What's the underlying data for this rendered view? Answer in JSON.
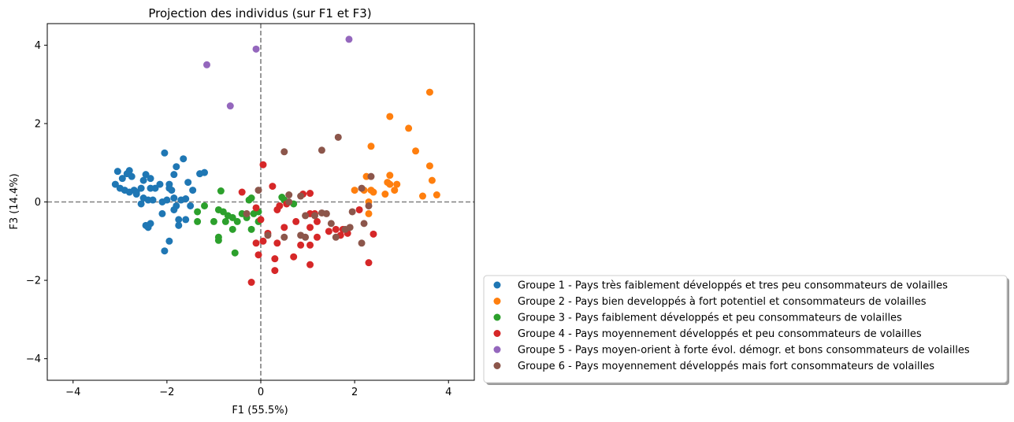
{
  "chart_data": {
    "type": "scatter",
    "title": "Projection des individus (sur F1 et F3)",
    "xlabel": "F1 (55.5%)",
    "ylabel": "F3 (14.4%)",
    "xlim": [
      -4.55,
      4.55
    ],
    "ylim": [
      -4.55,
      4.55
    ],
    "xticks": [
      -4,
      -2,
      0,
      2,
      4
    ],
    "yticks": [
      -4,
      -2,
      0,
      2,
      4
    ],
    "reference_lines": {
      "x": 0,
      "y": 0,
      "style": "dashed",
      "color": "#808080"
    },
    "legend_position": "lower-right outside",
    "series": [
      {
        "name": "Groupe 1 - Pays très faiblement développés et tres peu consommateurs de volailles",
        "color": "#1f77b4",
        "points": [
          [
            -3.05,
            0.78
          ],
          [
            -2.95,
            0.6
          ],
          [
            -2.85,
            0.72
          ],
          [
            -2.8,
            0.8
          ],
          [
            -2.75,
            0.65
          ],
          [
            -3.1,
            0.45
          ],
          [
            -3.0,
            0.35
          ],
          [
            -2.9,
            0.3
          ],
          [
            -2.8,
            0.25
          ],
          [
            -2.7,
            0.3
          ],
          [
            -2.65,
            0.25
          ],
          [
            -2.55,
            0.35
          ],
          [
            -2.5,
            0.55
          ],
          [
            -2.45,
            0.7
          ],
          [
            -2.35,
            0.6
          ],
          [
            -2.35,
            0.35
          ],
          [
            -2.25,
            0.35
          ],
          [
            -2.15,
            0.45
          ],
          [
            -2.05,
            1.25
          ],
          [
            -1.95,
            0.45
          ],
          [
            -1.95,
            0.35
          ],
          [
            -1.9,
            0.3
          ],
          [
            -1.85,
            0.7
          ],
          [
            -1.8,
            0.9
          ],
          [
            -1.65,
            1.1
          ],
          [
            -1.55,
            0.5
          ],
          [
            -1.45,
            0.3
          ],
          [
            -1.3,
            0.72
          ],
          [
            -1.2,
            0.75
          ],
          [
            -2.5,
            0.1
          ],
          [
            -2.4,
            0.05
          ],
          [
            -2.3,
            0.05
          ],
          [
            -2.1,
            0.0
          ],
          [
            -2.0,
            0.05
          ],
          [
            -1.85,
            0.1
          ],
          [
            -1.7,
            0.05
          ],
          [
            -1.6,
            0.08
          ],
          [
            -1.5,
            -0.1
          ],
          [
            -2.55,
            -0.05
          ],
          [
            -2.1,
            -0.3
          ],
          [
            -1.75,
            -0.45
          ],
          [
            -1.75,
            -0.6
          ],
          [
            -1.6,
            -0.45
          ],
          [
            -2.45,
            -0.6
          ],
          [
            -2.4,
            -0.65
          ],
          [
            -2.35,
            -0.55
          ],
          [
            -1.95,
            -1.0
          ],
          [
            -2.05,
            -1.25
          ],
          [
            -1.85,
            -0.2
          ],
          [
            -2.65,
            0.2
          ],
          [
            -1.8,
            -0.1
          ]
        ]
      },
      {
        "name": "Groupe 2 - Pays bien developpés à fort potentiel et consommateurs de volailles",
        "color": "#ff7f0e",
        "points": [
          [
            3.6,
            2.8
          ],
          [
            2.75,
            2.18
          ],
          [
            3.15,
            1.88
          ],
          [
            3.3,
            1.3
          ],
          [
            2.35,
            1.42
          ],
          [
            3.6,
            0.92
          ],
          [
            2.75,
            0.68
          ],
          [
            2.25,
            0.65
          ],
          [
            3.65,
            0.55
          ],
          [
            2.9,
            0.45
          ],
          [
            2.7,
            0.5
          ],
          [
            2.75,
            0.45
          ],
          [
            2.35,
            0.3
          ],
          [
            2.4,
            0.25
          ],
          [
            2.85,
            0.3
          ],
          [
            2.65,
            0.2
          ],
          [
            3.45,
            0.15
          ],
          [
            3.75,
            0.18
          ],
          [
            2.2,
            0.3
          ],
          [
            2.3,
            0.0
          ],
          [
            2.3,
            -0.3
          ],
          [
            2.0,
            0.3
          ]
        ]
      },
      {
        "name": "Groupe 3 - Pays faiblement développés et peu consommateurs de volailles",
        "color": "#2ca02c",
        "points": [
          [
            -0.85,
            0.28
          ],
          [
            -0.2,
            0.1
          ],
          [
            -0.25,
            0.05
          ],
          [
            0.45,
            0.12
          ],
          [
            0.5,
            0.05
          ],
          [
            0.7,
            -0.05
          ],
          [
            -1.2,
            -0.1
          ],
          [
            -0.9,
            -0.2
          ],
          [
            -0.8,
            -0.25
          ],
          [
            -0.7,
            -0.35
          ],
          [
            -0.6,
            -0.4
          ],
          [
            -0.4,
            -0.3
          ],
          [
            -0.15,
            -0.3
          ],
          [
            -0.3,
            -0.4
          ],
          [
            -0.5,
            -0.5
          ],
          [
            -0.75,
            -0.5
          ],
          [
            -1.0,
            -0.5
          ],
          [
            -1.35,
            -0.25
          ],
          [
            -1.35,
            -0.5
          ],
          [
            -0.6,
            -0.7
          ],
          [
            -0.2,
            -0.7
          ],
          [
            -0.05,
            -0.5
          ],
          [
            -0.9,
            -0.9
          ],
          [
            -0.9,
            -0.98
          ],
          [
            -0.55,
            -1.3
          ],
          [
            -0.05,
            -0.25
          ]
        ]
      },
      {
        "name": "Groupe 4 - Pays moyennement développés et peu consommateurs de volailles",
        "color": "#d62728",
        "points": [
          [
            0.05,
            0.95
          ],
          [
            0.25,
            0.4
          ],
          [
            -0.4,
            0.25
          ],
          [
            0.9,
            0.2
          ],
          [
            1.05,
            0.22
          ],
          [
            -0.1,
            -0.15
          ],
          [
            0.35,
            -0.2
          ],
          [
            0.4,
            -0.1
          ],
          [
            0.55,
            -0.05
          ],
          [
            0.75,
            -0.5
          ],
          [
            0.5,
            -0.65
          ],
          [
            1.05,
            -0.3
          ],
          [
            1.15,
            -0.3
          ],
          [
            1.2,
            -0.5
          ],
          [
            1.45,
            -0.75
          ],
          [
            1.6,
            -0.7
          ],
          [
            1.75,
            -0.7
          ],
          [
            1.85,
            -0.8
          ],
          [
            1.7,
            -0.85
          ],
          [
            2.1,
            -0.2
          ],
          [
            2.4,
            -0.82
          ],
          [
            0.15,
            -0.8
          ],
          [
            0.05,
            -1.0
          ],
          [
            0.35,
            -1.05
          ],
          [
            0.85,
            -1.1
          ],
          [
            1.05,
            -1.1
          ],
          [
            1.2,
            -0.9
          ],
          [
            -0.05,
            -1.35
          ],
          [
            0.3,
            -1.45
          ],
          [
            0.7,
            -1.4
          ],
          [
            1.05,
            -1.6
          ],
          [
            0.3,
            -1.75
          ],
          [
            -0.2,
            -2.05
          ],
          [
            2.3,
            -1.55
          ],
          [
            1.05,
            -0.65
          ],
          [
            0.0,
            -0.45
          ],
          [
            -0.1,
            -1.05
          ]
        ]
      },
      {
        "name": "Groupe 5 - Pays moyen-orient à forte évol. démogr. et bons consommateurs de volailles",
        "color": "#9467bd",
        "points": [
          [
            -1.15,
            3.5
          ],
          [
            -0.1,
            3.9
          ],
          [
            1.88,
            4.15
          ],
          [
            -0.65,
            2.45
          ]
        ]
      },
      {
        "name": "Groupe 6 - Pays moyennement développés mais fort consommateurs de volailles",
        "color": "#8c564b",
        "points": [
          [
            0.5,
            1.28
          ],
          [
            1.3,
            1.32
          ],
          [
            1.65,
            1.65
          ],
          [
            2.35,
            0.65
          ],
          [
            2.15,
            0.35
          ],
          [
            -0.05,
            0.3
          ],
          [
            0.6,
            0.18
          ],
          [
            0.85,
            0.15
          ],
          [
            0.6,
            0.0
          ],
          [
            -0.3,
            -0.3
          ],
          [
            0.95,
            -0.35
          ],
          [
            1.3,
            -0.28
          ],
          [
            1.4,
            -0.3
          ],
          [
            1.5,
            -0.55
          ],
          [
            1.6,
            -0.9
          ],
          [
            1.8,
            -0.7
          ],
          [
            1.95,
            -0.25
          ],
          [
            2.3,
            -0.1
          ],
          [
            2.2,
            -0.55
          ],
          [
            0.85,
            -0.85
          ],
          [
            0.95,
            -0.9
          ],
          [
            0.5,
            -0.9
          ],
          [
            0.15,
            -0.85
          ],
          [
            1.15,
            -0.35
          ],
          [
            1.9,
            -0.65
          ],
          [
            2.15,
            -1.05
          ]
        ]
      }
    ]
  }
}
